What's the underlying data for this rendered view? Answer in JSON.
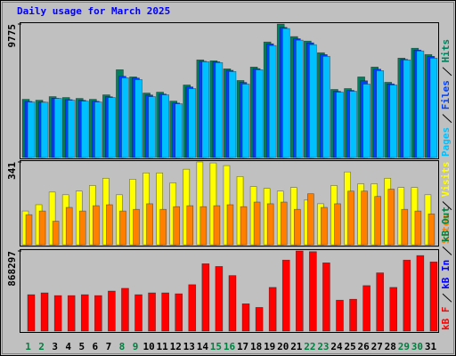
{
  "title": "Daily usage for March 2025",
  "chart_data": [
    {
      "type": "bar",
      "series": [
        {
          "name": "Pages",
          "color": "#00c0ff",
          "values": [
            4067,
            4050,
            4330,
            4198,
            4133,
            4067,
            4395,
            5838,
            5707,
            4461,
            4592,
            3936,
            5051,
            7019,
            6954,
            6298,
            5379,
            6429,
            8200,
            9446,
            8594,
            8266,
            7413,
            4789,
            4854,
            5379,
            6363,
            5314,
            7150,
            7806,
            7282
          ]
        },
        {
          "name": "Files",
          "color": "#0040ff",
          "values": [
            4110,
            4060,
            4340,
            4240,
            4190,
            4120,
            4450,
            5950,
            5820,
            4580,
            4650,
            3990,
            5170,
            7050,
            7010,
            6390,
            5500,
            6510,
            8330,
            9530,
            8700,
            8400,
            7540,
            4850,
            4920,
            5620,
            6470,
            5390,
            7190,
            7870,
            7410
          ]
        },
        {
          "name": "Hits",
          "color": "#00805c",
          "values": [
            4264,
            4199,
            4461,
            4395,
            4330,
            4264,
            4592,
            6429,
            5904,
            4723,
            4789,
            4133,
            5314,
            7151,
            7085,
            6495,
            5642,
            6626,
            8463,
            9775,
            8857,
            8528,
            7676,
            4986,
            5051,
            5904,
            6626,
            5511,
            7282,
            8004,
            7544
          ]
        }
      ],
      "ylim": [
        0,
        9775
      ],
      "yticks": [
        9775
      ]
    },
    {
      "type": "bar",
      "series": [
        {
          "name": "Sites",
          "color": "#ff8000",
          "values": [
            124,
            139,
            97,
            154,
            139,
            161,
            165,
            139,
            146,
            169,
            146,
            157,
            161,
            157,
            161,
            165,
            157,
            176,
            169,
            176,
            146,
            210,
            154,
            169,
            221,
            221,
            199,
            229,
            146,
            139,
            127
          ]
        },
        {
          "name": "Visits",
          "color": "#ffff00",
          "values": [
            139,
            165,
            217,
            206,
            221,
            244,
            274,
            206,
            270,
            296,
            296,
            255,
            311,
            341,
            337,
            326,
            281,
            240,
            232,
            221,
            236,
            184,
            169,
            244,
            300,
            251,
            251,
            274,
            236,
            236,
            206
          ]
        }
      ],
      "ylim": [
        0,
        341
      ],
      "yticks": [
        341
      ]
    },
    {
      "type": "bar",
      "categories": [
        "1",
        "2",
        "3",
        "4",
        "5",
        "6",
        "7",
        "8",
        "9",
        "10",
        "11",
        "12",
        "13",
        "14",
        "15",
        "16",
        "17",
        "18",
        "19",
        "20",
        "21",
        "22",
        "23",
        "24",
        "25",
        "26",
        "27",
        "28",
        "29",
        "30",
        "31"
      ],
      "category_colors": [
        "#008040",
        "#008040",
        "#000000",
        "#000000",
        "#000000",
        "#000000",
        "#000000",
        "#008040",
        "#008040",
        "#000000",
        "#000000",
        "#000000",
        "#000000",
        "#000000",
        "#008040",
        "#008040",
        "#000000",
        "#000000",
        "#000000",
        "#000000",
        "#000000",
        "#008040",
        "#008040",
        "#000000",
        "#000000",
        "#000000",
        "#000000",
        "#000000",
        "#008040",
        "#008040",
        "#000000"
      ],
      "series": [
        {
          "name": "kB F",
          "color": "#ff0000",
          "values": [
            394680,
            414414,
            384813,
            384813,
            394680,
            384813,
            434148,
            463749,
            394680,
            414414,
            414414,
            404547,
            503217,
            730158,
            700557,
            601887,
            296010,
            256542,
            473616,
            769626,
            868297,
            861000,
            740025,
            335478,
            345345,
            493350,
            631488,
            473616,
            769626,
            818961,
            749892
          ]
        },
        {
          "name": "kB In",
          "color": "#0000ff",
          "values": [
            0,
            0,
            0,
            0,
            0,
            0,
            0,
            0,
            0,
            0,
            0,
            0,
            0,
            0,
            0,
            0,
            0,
            0,
            0,
            0,
            0,
            0,
            0,
            0,
            0,
            0,
            0,
            0,
            0,
            0,
            0
          ]
        },
        {
          "name": "kB Out",
          "color": "#008040",
          "values": [
            0,
            0,
            0,
            0,
            0,
            0,
            0,
            0,
            0,
            0,
            0,
            0,
            0,
            0,
            0,
            0,
            0,
            0,
            0,
            0,
            0,
            0,
            0,
            0,
            0,
            0,
            0,
            0,
            0,
            0,
            0
          ]
        }
      ],
      "ylim": [
        0,
        868297
      ],
      "yticks": [
        868297
      ]
    }
  ]
}
